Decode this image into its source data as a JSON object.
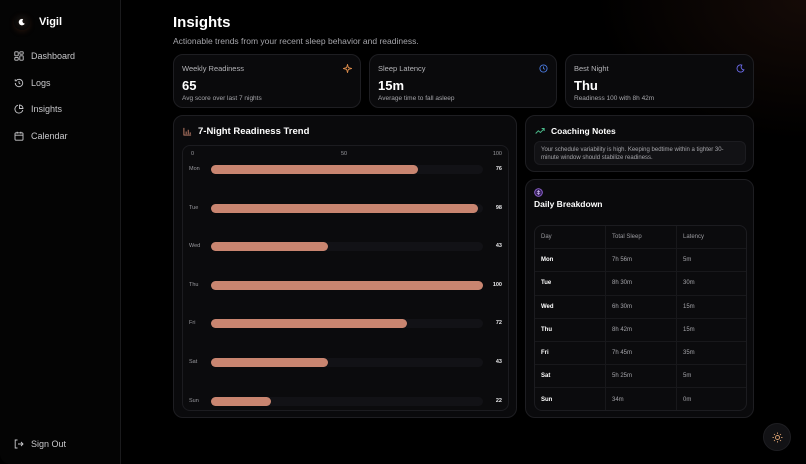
{
  "app": {
    "name": "Vigil"
  },
  "sidebar": {
    "items": [
      {
        "label": "Dashboard",
        "icon": "grid-icon"
      },
      {
        "label": "Logs",
        "icon": "history-icon"
      },
      {
        "label": "Insights",
        "icon": "pie-chart-icon"
      },
      {
        "label": "Calendar",
        "icon": "calendar-icon"
      }
    ],
    "sign_out": "Sign Out"
  },
  "header": {
    "title": "Insights",
    "subtitle": "Actionable trends from your recent sleep behavior and readiness."
  },
  "stats": [
    {
      "label": "Weekly Readiness",
      "value": "65",
      "sub": "Avg score over last 7 nights",
      "icon": "sparkle-icon",
      "color": "#d98a4a"
    },
    {
      "label": "Sleep Latency",
      "value": "15m",
      "sub": "Average time to fall asleep",
      "icon": "clock-icon",
      "color": "#4a7be0"
    },
    {
      "label": "Best Night",
      "value": "Thu",
      "sub": "Readiness 100 with 8h 42m",
      "icon": "moon-icon",
      "color": "#6a6ae8"
    }
  ],
  "trend": {
    "title": "7-Night Readiness Trend",
    "axis": [
      "0",
      "50",
      "100"
    ],
    "bar_color": "#c98570"
  },
  "chart_data": {
    "type": "bar",
    "title": "7-Night Readiness Trend",
    "categories": [
      "Mon",
      "Tue",
      "Wed",
      "Thu",
      "Fri",
      "Sat",
      "Sun"
    ],
    "values": [
      76,
      98,
      43,
      100,
      72,
      43,
      22
    ],
    "xlabel": "",
    "ylabel": "",
    "xlim": [
      0,
      100
    ],
    "orientation": "horizontal"
  },
  "coaching": {
    "title": "Coaching Notes",
    "note": "Your schedule variability is high. Keeping bedtime within a tighter 30-minute window should stabilize readiness."
  },
  "breakdown": {
    "title": "Daily Breakdown",
    "columns": [
      "Day",
      "Total Sleep",
      "Latency"
    ],
    "rows": [
      {
        "day": "Mon",
        "sleep": "7h 56m",
        "latency": "5m"
      },
      {
        "day": "Tue",
        "sleep": "8h 30m",
        "latency": "30m"
      },
      {
        "day": "Wed",
        "sleep": "6h 30m",
        "latency": "15m"
      },
      {
        "day": "Thu",
        "sleep": "8h 42m",
        "latency": "15m"
      },
      {
        "day": "Fri",
        "sleep": "7h 45m",
        "latency": "35m"
      },
      {
        "day": "Sat",
        "sleep": "5h 25m",
        "latency": "5m"
      },
      {
        "day": "Sun",
        "sleep": "34m",
        "latency": "0m"
      }
    ]
  }
}
